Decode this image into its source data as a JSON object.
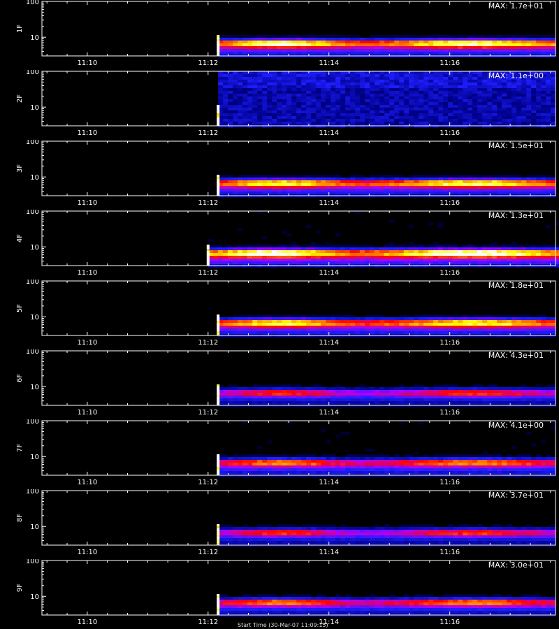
{
  "chart_data": [
    {
      "type": "heatmap",
      "channel": "1F",
      "max_label": "MAX: 1.7e+01",
      "yticks": [
        "100",
        "10"
      ],
      "xticks": [
        "11:10",
        "11:12",
        "11:14",
        "11:16"
      ],
      "data_start": "11:12:10",
      "xlim": [
        "11:09:15",
        "11:17:45"
      ],
      "ylim": [
        3,
        100
      ],
      "yscale": "log",
      "color_hint": [
        0.25,
        0.95,
        0.85
      ]
    },
    {
      "type": "heatmap",
      "channel": "2F",
      "max_label": "MAX: 1.1e+00",
      "yticks": [
        "100",
        "10"
      ],
      "xticks": [
        "11:10",
        "11:12",
        "11:14",
        "11:16"
      ],
      "data_start": "11:12:10",
      "xlim": [
        "11:09:15",
        "11:17:45"
      ],
      "ylim": [
        3,
        100
      ],
      "yscale": "log",
      "color_hint": [
        0.3,
        0.4,
        0.4
      ]
    },
    {
      "type": "heatmap",
      "channel": "3F",
      "max_label": "MAX: 1.5e+01",
      "yticks": [
        "100",
        "10"
      ],
      "xticks": [
        "11:10",
        "11:12",
        "11:14",
        "11:16"
      ],
      "data_start": "11:12:10",
      "xlim": [
        "11:09:15",
        "11:17:45"
      ],
      "ylim": [
        3,
        100
      ],
      "yscale": "log",
      "color_hint": [
        0.25,
        0.9,
        0.8
      ]
    },
    {
      "type": "heatmap",
      "channel": "4F",
      "max_label": "MAX: 1.3e+01",
      "yticks": [
        "100",
        "10"
      ],
      "xticks": [
        "11:10",
        "11:12",
        "11:14",
        "11:16"
      ],
      "data_start": "11:12:00",
      "xlim": [
        "11:09:15",
        "11:17:45"
      ],
      "ylim": [
        3,
        100
      ],
      "yscale": "log",
      "color_hint": [
        0.35,
        1.0,
        0.95
      ]
    },
    {
      "type": "heatmap",
      "channel": "5F",
      "max_label": "MAX: 1.8e+01",
      "yticks": [
        "100",
        "10"
      ],
      "xticks": [
        "11:10",
        "11:12",
        "11:14",
        "11:16"
      ],
      "data_start": "11:12:10",
      "xlim": [
        "11:09:15",
        "11:17:45"
      ],
      "ylim": [
        3,
        100
      ],
      "yscale": "log",
      "color_hint": [
        0.25,
        0.88,
        0.82
      ]
    },
    {
      "type": "heatmap",
      "channel": "6F",
      "max_label": "MAX: 4.3e+01",
      "yticks": [
        "100",
        "10"
      ],
      "xticks": [
        "11:10",
        "11:12",
        "11:14",
        "11:16"
      ],
      "data_start": "11:12:10",
      "xlim": [
        "11:09:15",
        "11:17:45"
      ],
      "ylim": [
        3,
        100
      ],
      "yscale": "log",
      "color_hint": [
        0.25,
        0.6,
        0.55
      ]
    },
    {
      "type": "heatmap",
      "channel": "7F",
      "max_label": "MAX: 4.1e+00",
      "yticks": [
        "100",
        "10"
      ],
      "xticks": [
        "11:10",
        "11:12",
        "11:14",
        "11:16"
      ],
      "data_start": "11:12:10",
      "xlim": [
        "11:09:15",
        "11:17:45"
      ],
      "ylim": [
        3,
        100
      ],
      "yscale": "log",
      "color_hint": [
        0.35,
        0.7,
        0.7
      ]
    },
    {
      "type": "heatmap",
      "channel": "8F",
      "max_label": "MAX: 3.7e+01",
      "yticks": [
        "100",
        "10"
      ],
      "xticks": [
        "11:10",
        "11:12",
        "11:14",
        "11:16"
      ],
      "data_start": "11:12:10",
      "xlim": [
        "11:09:15",
        "11:17:45"
      ],
      "ylim": [
        3,
        100
      ],
      "yscale": "log",
      "color_hint": [
        0.25,
        0.6,
        0.55
      ]
    },
    {
      "type": "heatmap",
      "channel": "9F",
      "max_label": "MAX: 3.0e+01",
      "yticks": [
        "100",
        "10"
      ],
      "xticks": [
        "11:10",
        "11:12",
        "11:14",
        "11:16"
      ],
      "data_start": "11:12:10",
      "xlim": [
        "11:09:15",
        "11:17:45"
      ],
      "ylim": [
        3,
        100
      ],
      "yscale": "log",
      "color_hint": [
        0.25,
        0.7,
        0.65
      ]
    }
  ],
  "footer": {
    "text": "Start Time (30-Mar-07 11:09:15)"
  },
  "colors": {
    "background": "#000000",
    "axes": "#ffffff",
    "colormap": [
      "#000000",
      "#00008c",
      "#1e1eff",
      "#b000ff",
      "#ff0000",
      "#ff8000",
      "#ffff00",
      "#ffffff"
    ]
  }
}
